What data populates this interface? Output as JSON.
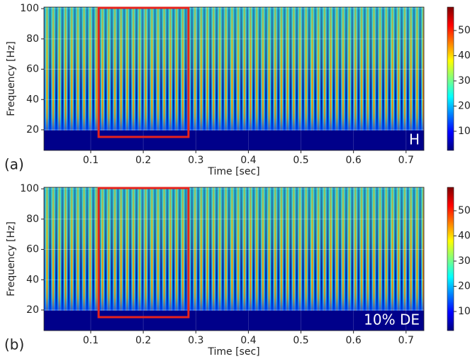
{
  "chart_data": [
    {
      "type": "heatmap",
      "panel_label": "(a)",
      "annotation": "H",
      "xlabel": "Time [sec]",
      "ylabel": "Frequency [Hz]",
      "xlim": [
        0.011,
        0.734
      ],
      "xticks": [
        0.1,
        0.2,
        0.3,
        0.4,
        0.5,
        0.6,
        0.7
      ],
      "ylim": [
        6.4,
        101
      ],
      "yticks": [
        20,
        40,
        60,
        80,
        100
      ],
      "grid": true,
      "colorbar": {
        "lim": [
          2.4,
          59.3
        ],
        "ticks": [
          10,
          20,
          30,
          40,
          50
        ]
      },
      "highlight": {
        "x": [
          0.115,
          0.286
        ],
        "y": [
          15.3,
          100.5
        ],
        "color": "#e8221c"
      }
    },
    {
      "type": "heatmap",
      "panel_label": "(b)",
      "annotation": "10% DE",
      "xlabel": "Time [sec]",
      "ylabel": "Frequency [Hz]",
      "xlim": [
        0.011,
        0.734
      ],
      "xticks": [
        0.1,
        0.2,
        0.3,
        0.4,
        0.5,
        0.6,
        0.7
      ],
      "ylim": [
        6.4,
        101
      ],
      "yticks": [
        20,
        40,
        60,
        80,
        100
      ],
      "grid": true,
      "colorbar": {
        "lim": [
          2.4,
          59.3
        ],
        "ticks": [
          10,
          20,
          30,
          40,
          50
        ]
      },
      "highlight": {
        "x": [
          0.115,
          0.286
        ],
        "y": [
          15.3,
          100.5
        ],
        "color": "#e8221c"
      }
    }
  ]
}
